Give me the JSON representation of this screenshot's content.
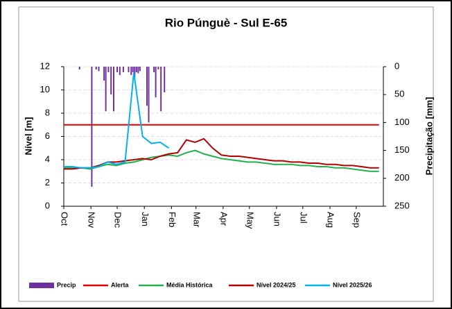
{
  "chart_data": {
    "type": "line",
    "title": "Rio Púnguè - Sul E-65",
    "ylabel": "Nível [m]",
    "y2label": "Precipitação [mm]",
    "xlim": [
      0,
      365
    ],
    "xticks": [
      {
        "value": 0,
        "label": "Oct"
      },
      {
        "value": 31,
        "label": "Nov"
      },
      {
        "value": 61,
        "label": "Dec"
      },
      {
        "value": 92,
        "label": "Jan"
      },
      {
        "value": 123,
        "label": "Feb"
      },
      {
        "value": 151,
        "label": "Mar"
      },
      {
        "value": 182,
        "label": "Apr"
      },
      {
        "value": 212,
        "label": "May"
      },
      {
        "value": 243,
        "label": "Jun"
      },
      {
        "value": 273,
        "label": "Jul"
      },
      {
        "value": 304,
        "label": "Aug"
      },
      {
        "value": 334,
        "label": "Sep"
      }
    ],
    "ylim": [
      0,
      12
    ],
    "yticks": [
      0,
      2,
      4,
      6,
      8,
      10,
      12
    ],
    "y2lim": [
      0,
      250
    ],
    "y2ticks": [
      0,
      50,
      100,
      150,
      200,
      250
    ],
    "y2_inverted": true,
    "grid": true,
    "legend": "bottom",
    "x": [
      0,
      10,
      20,
      30,
      40,
      50,
      60,
      70,
      80,
      90,
      100,
      110,
      120,
      130,
      140,
      150,
      160,
      170,
      180,
      190,
      200,
      210,
      220,
      230,
      240,
      250,
      260,
      270,
      280,
      290,
      300,
      310,
      320,
      330,
      340,
      350,
      360
    ],
    "series": [
      {
        "name": "Precip",
        "type": "bar",
        "axis": "y2",
        "color": "#7030a0",
        "x": [
          18,
          32,
          37,
          40,
          46,
          48,
          51,
          54,
          57,
          61,
          64,
          68,
          74,
          77,
          79,
          81,
          83,
          85,
          87,
          95,
          97,
          103,
          105,
          108,
          111,
          115
        ],
        "values": [
          5,
          215,
          5,
          8,
          25,
          80,
          10,
          50,
          80,
          10,
          15,
          10,
          10,
          15,
          10,
          20,
          10,
          12,
          8,
          70,
          100,
          10,
          55,
          5,
          80,
          46
        ]
      },
      {
        "name": "Alerta",
        "color": "#e00000",
        "values": [
          7,
          7,
          7,
          7,
          7,
          7,
          7,
          7,
          7,
          7,
          7,
          7,
          7,
          7,
          7,
          7,
          7,
          7,
          7,
          7,
          7,
          7,
          7,
          7,
          7,
          7,
          7,
          7,
          7,
          7,
          7,
          7,
          7,
          7,
          7,
          7,
          7
        ]
      },
      {
        "name": "Média Histórica",
        "color": "#22b04c",
        "values": [
          3.3,
          3.3,
          3.3,
          3.2,
          3.4,
          3.6,
          3.5,
          3.7,
          3.8,
          4.0,
          4.2,
          4.3,
          4.4,
          4.3,
          4.6,
          4.8,
          4.5,
          4.3,
          4.1,
          4.0,
          3.9,
          3.8,
          3.8,
          3.7,
          3.6,
          3.6,
          3.6,
          3.5,
          3.5,
          3.4,
          3.4,
          3.3,
          3.3,
          3.2,
          3.1,
          3.0,
          3.0
        ]
      },
      {
        "name": "Nível 2024/25",
        "color": "#b00000",
        "values": [
          3.2,
          3.2,
          3.3,
          3.3,
          3.5,
          3.8,
          3.8,
          3.9,
          4.0,
          4.1,
          4.0,
          4.3,
          4.5,
          4.6,
          5.7,
          5.5,
          5.8,
          5.0,
          4.4,
          4.3,
          4.3,
          4.2,
          4.1,
          4.0,
          3.9,
          3.9,
          3.8,
          3.8,
          3.7,
          3.7,
          3.6,
          3.6,
          3.5,
          3.5,
          3.4,
          3.3,
          3.3
        ]
      },
      {
        "name": "Nível 2025/26",
        "color": "#00b0f0",
        "values": [
          3.4,
          3.4,
          3.3,
          3.3,
          3.4,
          3.8,
          3.6,
          3.8,
          11.5,
          6.0,
          5.4,
          5.5,
          5.0,
          null,
          null,
          null,
          null,
          null,
          null,
          null,
          null,
          null,
          null,
          null,
          null,
          null,
          null,
          null,
          null,
          null,
          null,
          null,
          null,
          null,
          null,
          null,
          null
        ]
      }
    ]
  }
}
